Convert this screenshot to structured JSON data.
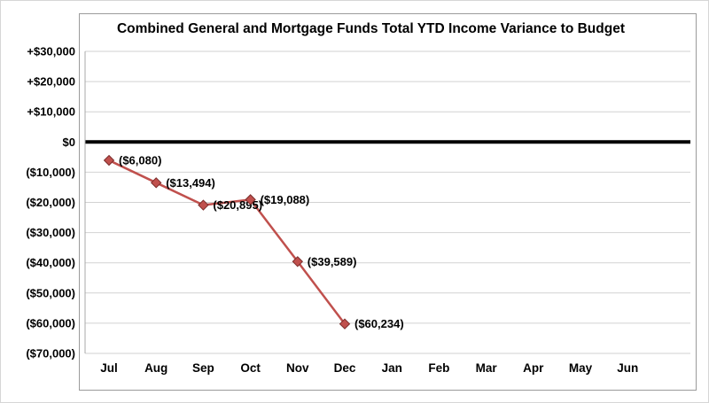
{
  "chart_data": {
    "type": "line",
    "title": "Combined General and Mortgage Funds Total YTD Income Variance to Budget",
    "categories": [
      "Jul",
      "Aug",
      "Sep",
      "Oct",
      "Nov",
      "Dec",
      "Jan",
      "Feb",
      "Mar",
      "Apr",
      "May",
      "Jun"
    ],
    "values": [
      -6080,
      -13494,
      -20895,
      -19088,
      -39589,
      -60234,
      null,
      null,
      null,
      null,
      null,
      null
    ],
    "data_labels": [
      "($6,080)",
      "($13,494)",
      "($20,895)",
      "($19,088)",
      "($39,589)",
      "($60,234)"
    ],
    "ylim": [
      -70000,
      30000
    ],
    "y_tick_step": 10000,
    "y_tick_labels": [
      "+$30,000",
      "+$20,000",
      "+$10,000",
      "$0",
      "($10,000)",
      "($20,000)",
      "($30,000)",
      "($40,000)",
      "($50,000)",
      "($60,000)",
      "($70,000)"
    ],
    "zero_baseline_value": 0,
    "grid": true,
    "legend": "none",
    "marker": "diamond",
    "colors": {
      "line": "#c0504d",
      "marker_fill": "#c0504d",
      "marker_border": "#7a2c2a",
      "gridline": "#d2d2d2",
      "axis_line": "#a8a8a8",
      "zero_line": "#000000",
      "text": "#000000",
      "chart_border": "#9b9b9b",
      "background": "#ffffff"
    }
  }
}
